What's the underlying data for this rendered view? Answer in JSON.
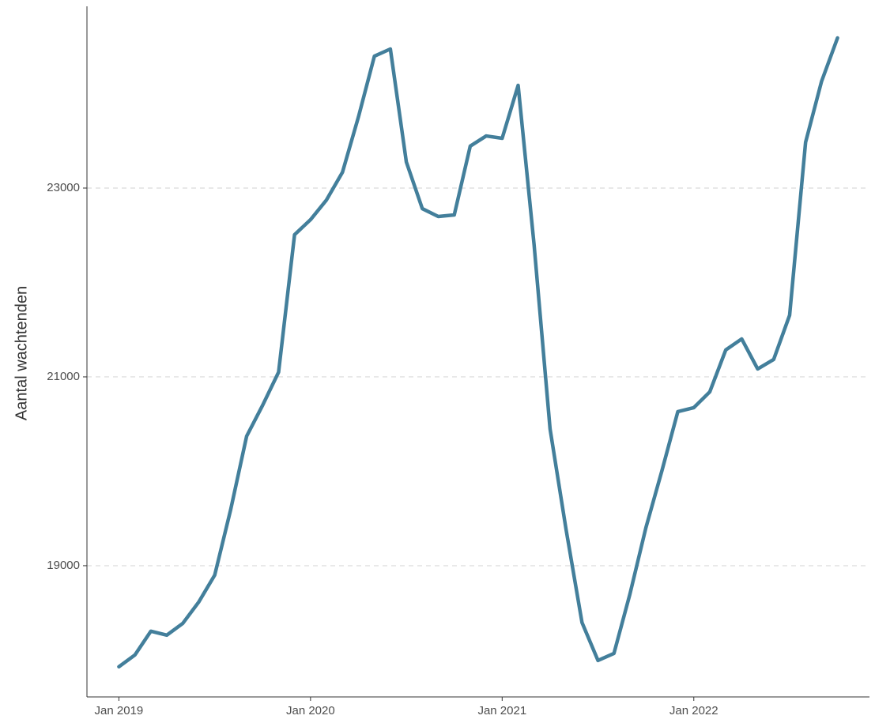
{
  "chart_data": {
    "type": "line",
    "y_label": "Aantal wachtenden",
    "x": [
      "2019-01",
      "2019-02",
      "2019-03",
      "2019-04",
      "2019-05",
      "2019-06",
      "2019-07",
      "2019-08",
      "2019-09",
      "2019-10",
      "2019-11",
      "2019-12",
      "2020-01",
      "2020-02",
      "2020-03",
      "2020-04",
      "2020-05",
      "2020-06",
      "2020-07",
      "2020-08",
      "2020-09",
      "2020-10",
      "2020-11",
      "2020-12",
      "2021-01",
      "2021-02",
      "2021-03",
      "2021-04",
      "2021-05",
      "2021-06",
      "2021-07",
      "2021-08",
      "2021-09",
      "2021-10",
      "2021-11",
      "2021-12",
      "2022-01",
      "2022-02",
      "2022-03",
      "2022-04",
      "2022-05",
      "2022-06",
      "2022-07",
      "2022-08",
      "2022-09",
      "2022-10"
    ],
    "series": [
      {
        "name": "Aantal wachtenden",
        "color": "#437f9b",
        "values": [
          17930,
          18054,
          18306,
          18264,
          18389,
          18615,
          18900,
          19594,
          20372,
          20699,
          21050,
          22506,
          22665,
          22874,
          23167,
          23753,
          24397,
          24473,
          23276,
          22782,
          22699,
          22715,
          23444,
          23552,
          23527,
          24088,
          22398,
          20448,
          19385,
          18398,
          17996,
          18071,
          18699,
          19402,
          20004,
          20632,
          20674,
          20841,
          21285,
          21402,
          21084,
          21184,
          21653,
          23485,
          24130,
          24590
        ]
      }
    ],
    "xlim": [
      "2018-11",
      "2022-12"
    ],
    "xticks": [
      {
        "value": "2019-01",
        "label": "Jan 2019"
      },
      {
        "value": "2020-01",
        "label": "Jan 2020"
      },
      {
        "value": "2021-01",
        "label": "Jan 2021"
      },
      {
        "value": "2022-01",
        "label": "Jan 2022"
      }
    ],
    "ylim": [
      17610,
      24925
    ],
    "yticks": [
      19000,
      21000,
      23000
    ],
    "grid": true
  }
}
